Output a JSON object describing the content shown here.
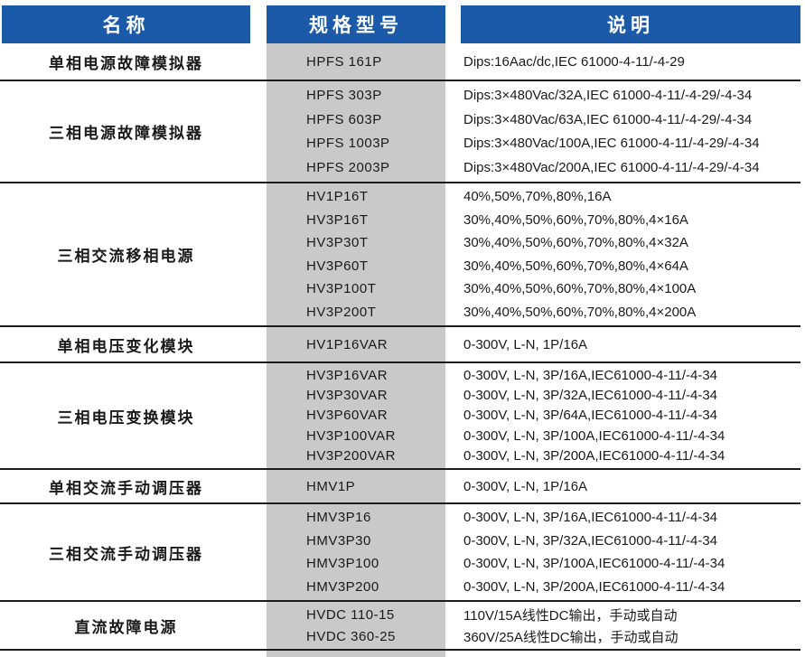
{
  "table": {
    "headers": [
      {
        "label": "名称"
      },
      {
        "label": "规格型号"
      },
      {
        "label": "说明"
      }
    ],
    "groups": [
      {
        "name": "单相电源故障模拟器",
        "rows": [
          {
            "model": "HPFS 161P",
            "desc": "Dips:16Aac/dc,IEC 61000-4-11/-4-29"
          }
        ]
      },
      {
        "name": "三相电源故障模拟器",
        "rows": [
          {
            "model": "HPFS 303P",
            "desc": "Dips:3×480Vac/32A,IEC 61000-4-11/-4-29/-4-34"
          },
          {
            "model": "HPFS 603P",
            "desc": "Dips:3×480Vac/63A,IEC 61000-4-11/-4-29/-4-34"
          },
          {
            "model": "HPFS 1003P",
            "desc": "Dips:3×480Vac/100A,IEC 61000-4-11/-4-29/-4-34"
          },
          {
            "model": "HPFS 2003P",
            "desc": "Dips:3×480Vac/200A,IEC 61000-4-11/-4-29/-4-34"
          }
        ]
      },
      {
        "name": "三相交流移相电源",
        "rows": [
          {
            "model": "HV1P16T",
            "desc": "40%,50%,70%,80%,16A"
          },
          {
            "model": "HV3P16T",
            "desc": "30%,40%,50%,60%,70%,80%,4×16A"
          },
          {
            "model": "HV3P30T",
            "desc": "30%,40%,50%,60%,70%,80%,4×32A"
          },
          {
            "model": "HV3P60T",
            "desc": "30%,40%,50%,60%,70%,80%,4×64A"
          },
          {
            "model": "HV3P100T",
            "desc": "30%,40%,50%,60%,70%,80%,4×100A"
          },
          {
            "model": "HV3P200T",
            "desc": "30%,40%,50%,60%,70%,80%,4×200A"
          }
        ]
      },
      {
        "name": "单相电压变化模块",
        "rows": [
          {
            "model": "HV1P16VAR",
            "desc": "0-300V, L-N, 1P/16A"
          }
        ]
      },
      {
        "name": "三相电压变换模块",
        "rows": [
          {
            "model": "HV3P16VAR",
            "desc": "0-300V, L-N, 3P/16A,IEC61000-4-11/-4-34"
          },
          {
            "model": "HV3P30VAR",
            "desc": "0-300V, L-N, 3P/32A,IEC61000-4-11/-4-34"
          },
          {
            "model": "HV3P60VAR",
            "desc": "0-300V, L-N, 3P/64A,IEC61000-4-11/-4-34"
          },
          {
            "model": "HV3P100VAR",
            "desc": "0-300V, L-N, 3P/100A,IEC61000-4-11/-4-34"
          },
          {
            "model": "HV3P200VAR",
            "desc": "0-300V, L-N, 3P/200A,IEC61000-4-11/-4-34"
          }
        ]
      },
      {
        "name": "单相交流手动调压器",
        "rows": [
          {
            "model": "HMV1P",
            "desc": "0-300V, L-N, 1P/16A"
          }
        ]
      },
      {
        "name": "三相交流手动调压器",
        "rows": [
          {
            "model": "HMV3P16",
            "desc": "0-300V, L-N, 3P/16A,IEC61000-4-11/-4-34"
          },
          {
            "model": "HMV3P30",
            "desc": "0-300V, L-N, 3P/32A,IEC61000-4-11/-4-34"
          },
          {
            "model": "HMV3P100",
            "desc": "0-300V, L-N, 3P/100A,IEC61000-4-11/-4-34"
          },
          {
            "model": "HMV3P200",
            "desc": "0-300V, L-N, 3P/200A,IEC61000-4-11/-4-34"
          }
        ]
      },
      {
        "name": "直流故障电源",
        "rows": [
          {
            "model": "HVDC 110-15",
            "desc": "110V/15A线性DC输出，手动或自动"
          },
          {
            "model": "HVDC 360-25",
            "desc": "360V/25A线性DC输出，手动或自动"
          }
        ]
      }
    ],
    "colors": {
      "header_bg": "#1a5aa8",
      "header_text": "#ffffff",
      "model_col_bg": "#c9c9c9",
      "line": "#1c1c1c",
      "text": "#1a1a1a"
    }
  }
}
